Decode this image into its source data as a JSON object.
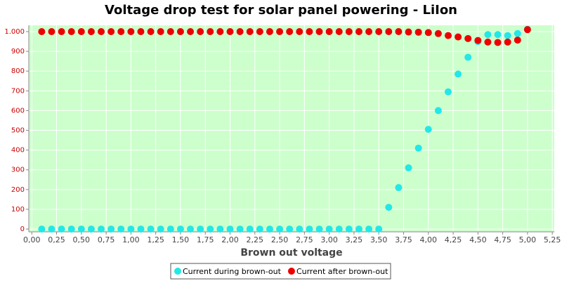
{
  "chart_data": {
    "type": "scatter",
    "title": "Voltage drop test for solar panel powering -  LiIon",
    "x_label": "Brown out voltage",
    "x": [
      0.1,
      0.2,
      0.3,
      0.4,
      0.5,
      0.6,
      0.7,
      0.8,
      0.9,
      1.0,
      1.1,
      1.2,
      1.3,
      1.4,
      1.5,
      1.6,
      1.7,
      1.8,
      1.9,
      2.0,
      2.1,
      2.2,
      2.3,
      2.4,
      2.5,
      2.6,
      2.7,
      2.8,
      2.9,
      3.0,
      3.1,
      3.2,
      3.3,
      3.4,
      3.5,
      3.6,
      3.7,
      3.8,
      3.9,
      4.0,
      4.1,
      4.2,
      4.3,
      4.4,
      4.5,
      4.6,
      4.7,
      4.8,
      4.9,
      5.0
    ],
    "series": [
      {
        "name": "Current during brown-out",
        "color": "#22e8e8",
        "values": [
          0,
          0,
          0,
          0,
          0,
          0,
          0,
          0,
          0,
          0,
          0,
          0,
          0,
          0,
          0,
          0,
          0,
          0,
          0,
          0,
          0,
          0,
          0,
          0,
          0,
          0,
          0,
          0,
          0,
          0,
          0,
          0,
          0,
          0,
          0,
          110,
          210,
          310,
          410,
          505,
          600,
          695,
          785,
          870,
          950,
          985,
          985,
          980,
          990,
          1012
        ]
      },
      {
        "name": "Current after brown-out",
        "color": "#ee0000",
        "values": [
          1000,
          1000,
          1000,
          1000,
          1000,
          1000,
          1000,
          1000,
          1000,
          1000,
          1000,
          1000,
          1000,
          1000,
          1000,
          1000,
          1000,
          1000,
          1000,
          1000,
          1000,
          1000,
          1000,
          1000,
          1000,
          1000,
          1000,
          1000,
          1000,
          1000,
          1000,
          1000,
          1000,
          1000,
          1000,
          1000,
          1000,
          998,
          997,
          995,
          990,
          980,
          973,
          965,
          955,
          947,
          945,
          947,
          957,
          1010
        ]
      }
    ],
    "xlim": [
      -0.03,
      5.27
    ],
    "ylim": [
      -14,
      1032
    ],
    "xticks": [
      {
        "value": 0,
        "label": "0,00"
      },
      {
        "value": 0.25,
        "label": "0,25"
      },
      {
        "value": 0.5,
        "label": "0,50"
      },
      {
        "value": 0.75,
        "label": "0,75"
      },
      {
        "value": 1,
        "label": "1,00"
      },
      {
        "value": 1.25,
        "label": "1,25"
      },
      {
        "value": 1.5,
        "label": "1,50"
      },
      {
        "value": 1.75,
        "label": "1,75"
      },
      {
        "value": 2,
        "label": "2,00"
      },
      {
        "value": 2.25,
        "label": "2,25"
      },
      {
        "value": 2.5,
        "label": "2,50"
      },
      {
        "value": 2.75,
        "label": "2,75"
      },
      {
        "value": 3,
        "label": "3,00"
      },
      {
        "value": 3.25,
        "label": "3,25"
      },
      {
        "value": 3.5,
        "label": "3,50"
      },
      {
        "value": 3.75,
        "label": "3,75"
      },
      {
        "value": 4,
        "label": "4,00"
      },
      {
        "value": 4.25,
        "label": "4,25"
      },
      {
        "value": 4.5,
        "label": "4,50"
      },
      {
        "value": 4.75,
        "label": "4,75"
      },
      {
        "value": 5,
        "label": "5,00"
      },
      {
        "value": 5.25,
        "label": "5,25"
      }
    ],
    "yticks": [
      0,
      100,
      200,
      300,
      400,
      500,
      600,
      700,
      800,
      900,
      {
        "value": 1000,
        "label": "1.000"
      }
    ],
    "grid": true
  }
}
